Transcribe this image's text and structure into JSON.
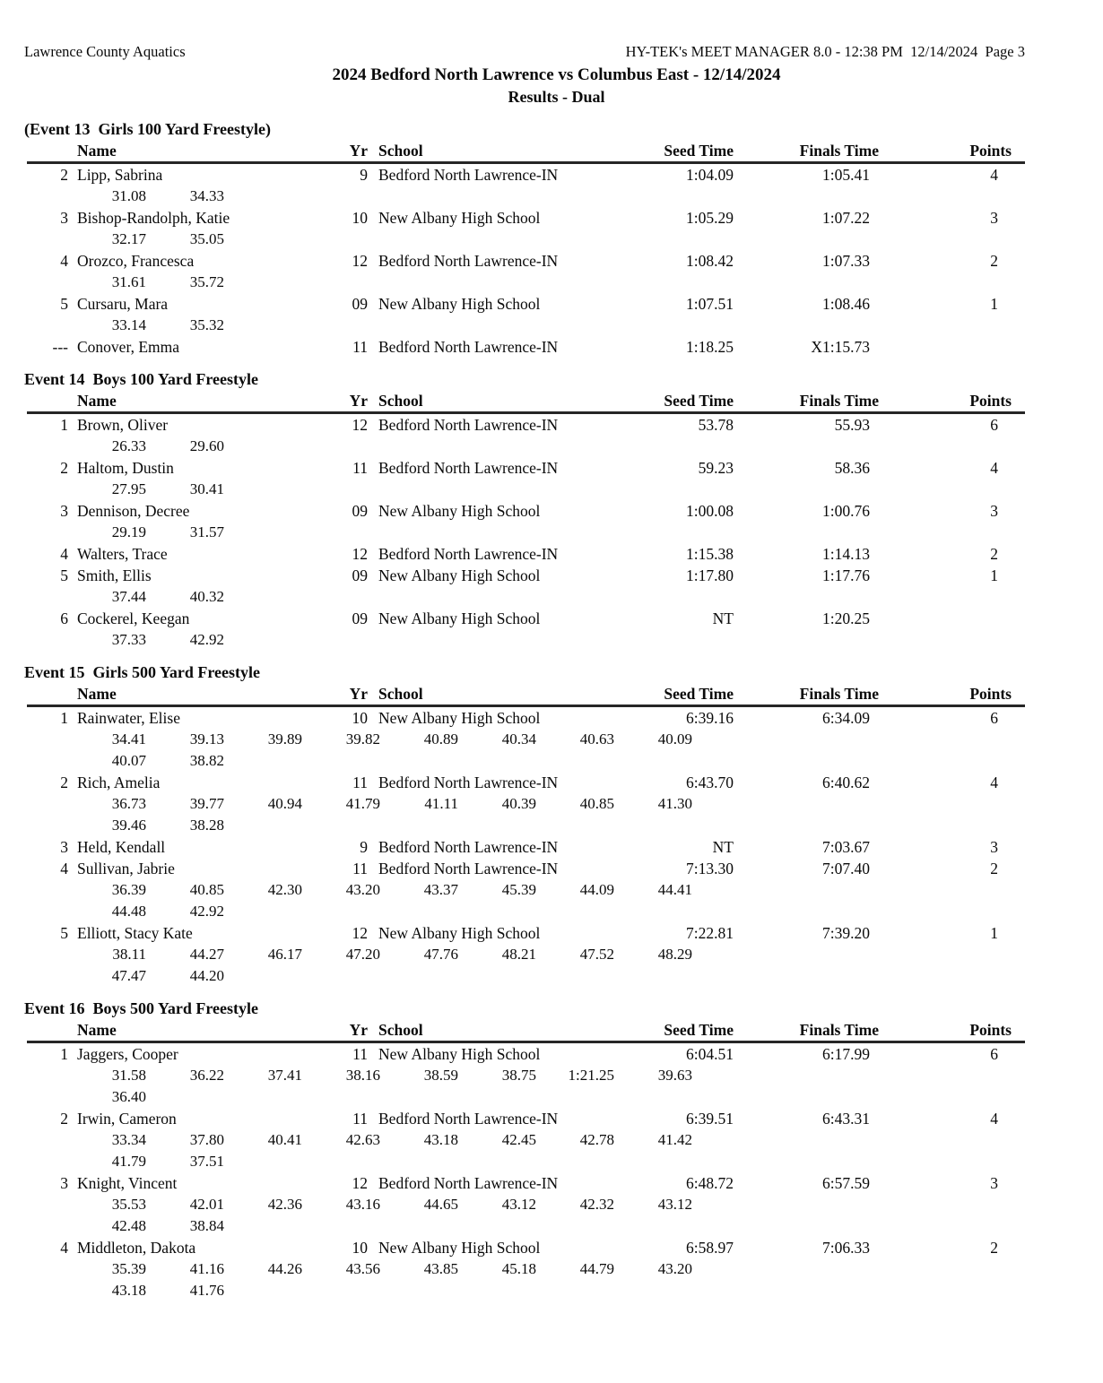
{
  "page_header": {
    "left": "Lawrence County Aquatics",
    "right": "HY-TEK's MEET MANAGER 8.0 - 12:38 PM  12/14/2024  Page 3"
  },
  "title": "2024 Bedford North Lawrence vs Columbus East - 12/14/2024",
  "subtitle": "Results - Dual",
  "colors": {
    "background": "#ffffff",
    "text": "#0a0a0a",
    "rule": "#262626"
  },
  "columns": {
    "name": "Name",
    "yr": "Yr",
    "school": "School",
    "seed": "Seed Time",
    "finals": "Finals Time",
    "points": "Points"
  },
  "events": [
    {
      "title": "(Event 13  Girls 100 Yard Freestyle)",
      "results": [
        {
          "place": "2",
          "name": "Lipp, Sabrina",
          "yr": "9",
          "school": "Bedford North Lawrence-IN",
          "seed": "1:04.09",
          "finals": "1:05.41",
          "points": "4",
          "splits": [
            [
              "31.08",
              "34.33"
            ]
          ]
        },
        {
          "place": "3",
          "name": "Bishop-Randolph, Katie",
          "yr": "10",
          "school": "New Albany High School",
          "seed": "1:05.29",
          "finals": "1:07.22",
          "points": "3",
          "splits": [
            [
              "32.17",
              "35.05"
            ]
          ]
        },
        {
          "place": "4",
          "name": "Orozco, Francesca",
          "yr": "12",
          "school": "Bedford North Lawrence-IN",
          "seed": "1:08.42",
          "finals": "1:07.33",
          "points": "2",
          "splits": [
            [
              "31.61",
              "35.72"
            ]
          ]
        },
        {
          "place": "5",
          "name": "Cursaru, Mara",
          "yr": "09",
          "school": "New Albany High School",
          "seed": "1:07.51",
          "finals": "1:08.46",
          "points": "1",
          "splits": [
            [
              "33.14",
              "35.32"
            ]
          ]
        },
        {
          "place": "---",
          "name": "Conover, Emma",
          "yr": "11",
          "school": "Bedford North Lawrence-IN",
          "seed": "1:18.25",
          "finals": "X1:15.73",
          "points": "",
          "splits": []
        }
      ]
    },
    {
      "title": "Event 14  Boys 100 Yard Freestyle",
      "results": [
        {
          "place": "1",
          "name": "Brown, Oliver",
          "yr": "12",
          "school": "Bedford North Lawrence-IN",
          "seed": "53.78",
          "finals": "55.93",
          "points": "6",
          "splits": [
            [
              "26.33",
              "29.60"
            ]
          ]
        },
        {
          "place": "2",
          "name": "Haltom, Dustin",
          "yr": "11",
          "school": "Bedford North Lawrence-IN",
          "seed": "59.23",
          "finals": "58.36",
          "points": "4",
          "splits": [
            [
              "27.95",
              "30.41"
            ]
          ]
        },
        {
          "place": "3",
          "name": "Dennison, Decree",
          "yr": "09",
          "school": "New Albany High School",
          "seed": "1:00.08",
          "finals": "1:00.76",
          "points": "3",
          "splits": [
            [
              "29.19",
              "31.57"
            ]
          ]
        },
        {
          "place": "4",
          "name": "Walters, Trace",
          "yr": "12",
          "school": "Bedford North Lawrence-IN",
          "seed": "1:15.38",
          "finals": "1:14.13",
          "points": "2",
          "splits": []
        },
        {
          "place": "5",
          "name": "Smith, Ellis",
          "yr": "09",
          "school": "New Albany High School",
          "seed": "1:17.80",
          "finals": "1:17.76",
          "points": "1",
          "splits": [
            [
              "37.44",
              "40.32"
            ]
          ]
        },
        {
          "place": "6",
          "name": "Cockerel, Keegan",
          "yr": "09",
          "school": "New Albany High School",
          "seed": "NT",
          "finals": "1:20.25",
          "points": "",
          "splits": [
            [
              "37.33",
              "42.92"
            ]
          ]
        }
      ]
    },
    {
      "title": "Event 15  Girls 500 Yard Freestyle",
      "results": [
        {
          "place": "1",
          "name": "Rainwater, Elise",
          "yr": "10",
          "school": "New Albany High School",
          "seed": "6:39.16",
          "finals": "6:34.09",
          "points": "6",
          "splits": [
            [
              "34.41",
              "39.13",
              "39.89",
              "39.82",
              "40.89",
              "40.34",
              "40.63",
              "40.09"
            ],
            [
              "40.07",
              "38.82"
            ]
          ]
        },
        {
          "place": "2",
          "name": "Rich, Amelia",
          "yr": "11",
          "school": "Bedford North Lawrence-IN",
          "seed": "6:43.70",
          "finals": "6:40.62",
          "points": "4",
          "splits": [
            [
              "36.73",
              "39.77",
              "40.94",
              "41.79",
              "41.11",
              "40.39",
              "40.85",
              "41.30"
            ],
            [
              "39.46",
              "38.28"
            ]
          ]
        },
        {
          "place": "3",
          "name": "Held, Kendall",
          "yr": "9",
          "school": "Bedford North Lawrence-IN",
          "seed": "NT",
          "finals": "7:03.67",
          "points": "3",
          "splits": []
        },
        {
          "place": "4",
          "name": "Sullivan, Jabrie",
          "yr": "11",
          "school": "Bedford North Lawrence-IN",
          "seed": "7:13.30",
          "finals": "7:07.40",
          "points": "2",
          "splits": [
            [
              "36.39",
              "40.85",
              "42.30",
              "43.20",
              "43.37",
              "45.39",
              "44.09",
              "44.41"
            ],
            [
              "44.48",
              "42.92"
            ]
          ]
        },
        {
          "place": "5",
          "name": "Elliott, Stacy Kate",
          "yr": "12",
          "school": "New Albany High School",
          "seed": "7:22.81",
          "finals": "7:39.20",
          "points": "1",
          "splits": [
            [
              "38.11",
              "44.27",
              "46.17",
              "47.20",
              "47.76",
              "48.21",
              "47.52",
              "48.29"
            ],
            [
              "47.47",
              "44.20"
            ]
          ]
        }
      ]
    },
    {
      "title": "Event 16  Boys 500 Yard Freestyle",
      "results": [
        {
          "place": "1",
          "name": "Jaggers, Cooper",
          "yr": "11",
          "school": "New Albany High School",
          "seed": "6:04.51",
          "finals": "6:17.99",
          "points": "6",
          "splits": [
            [
              "31.58",
              "36.22",
              "37.41",
              "38.16",
              "38.59",
              "38.75",
              "1:21.25",
              "39.63"
            ],
            [
              "36.40"
            ]
          ]
        },
        {
          "place": "2",
          "name": "Irwin, Cameron",
          "yr": "11",
          "school": "Bedford North Lawrence-IN",
          "seed": "6:39.51",
          "finals": "6:43.31",
          "points": "4",
          "splits": [
            [
              "33.34",
              "37.80",
              "40.41",
              "42.63",
              "43.18",
              "42.45",
              "42.78",
              "41.42"
            ],
            [
              "41.79",
              "37.51"
            ]
          ]
        },
        {
          "place": "3",
          "name": "Knight, Vincent",
          "yr": "12",
          "school": "Bedford North Lawrence-IN",
          "seed": "6:48.72",
          "finals": "6:57.59",
          "points": "3",
          "splits": [
            [
              "35.53",
              "42.01",
              "42.36",
              "43.16",
              "44.65",
              "43.12",
              "42.32",
              "43.12"
            ],
            [
              "42.48",
              "38.84"
            ]
          ]
        },
        {
          "place": "4",
          "name": "Middleton, Dakota",
          "yr": "10",
          "school": "New Albany High School",
          "seed": "6:58.97",
          "finals": "7:06.33",
          "points": "2",
          "splits": [
            [
              "35.39",
              "41.16",
              "44.26",
              "43.56",
              "43.85",
              "45.18",
              "44.79",
              "43.20"
            ],
            [
              "43.18",
              "41.76"
            ]
          ]
        }
      ]
    }
  ]
}
